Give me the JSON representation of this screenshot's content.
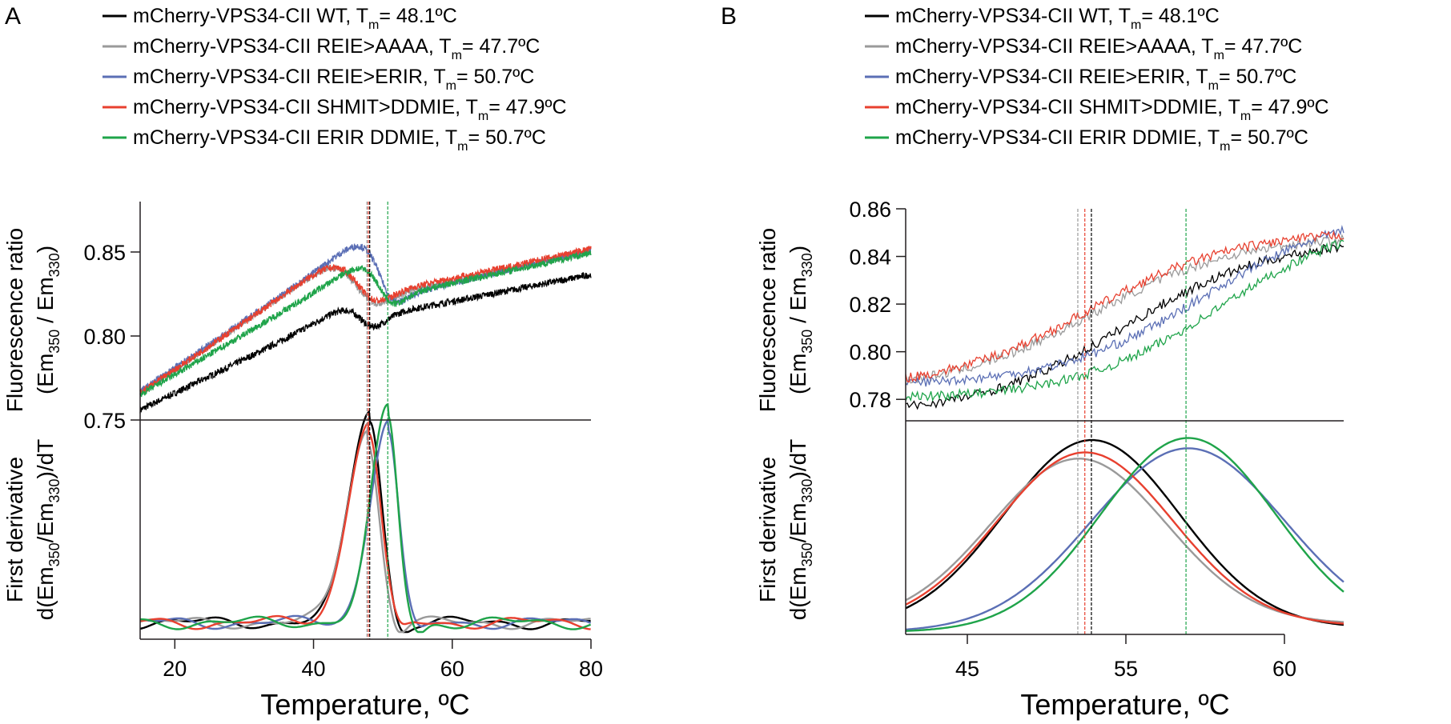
{
  "figure": {
    "panels": [
      "A",
      "B"
    ]
  },
  "legend": {
    "prefix": "mCherry-VPS34-CII",
    "tm_symbol": "T",
    "tm_sub": "m",
    "entries": [
      {
        "name": "WT",
        "tm": "48.1ºC",
        "color": "#000000"
      },
      {
        "name": "REIE>AAAA",
        "tm": "47.7ºC",
        "color": "#9a9a9a"
      },
      {
        "name": "REIE>ERIR",
        "tm": "50.7ºC",
        "color": "#5b6fb5"
      },
      {
        "name": "SHMIT>DDMIE",
        "tm": "47.9ºC",
        "color": "#e8402f"
      },
      {
        "name": "ERIR DDMIE",
        "tm": "50.7ºC",
        "color": "#1fa44a"
      }
    ]
  },
  "labels": {
    "ratio_line1": "Fluorescence ratio",
    "ratio_open": "(Em",
    "ratio_sub1": "350",
    "ratio_mid": " / Em",
    "ratio_sub2": "330",
    "ratio_close": ")",
    "deriv_line1": "First derivative",
    "deriv_open": "d(Em",
    "deriv_sub1": "350",
    "deriv_mid": "/Em",
    "deriv_sub2": "330",
    "deriv_close": ")/dT",
    "xlabel": "Temperature, ºC"
  },
  "chart_data": [
    {
      "panel": "A",
      "type": "line",
      "title": "",
      "xlabel": "Temperature, ºC",
      "xlim": [
        15,
        80
      ],
      "xticks": [
        20,
        40,
        60,
        80
      ],
      "grid": false,
      "legend_position": "top",
      "top_plot": {
        "ylabel": "Fluorescence ratio (Em350 / Em330)",
        "ylim": [
          0.75,
          0.88
        ],
        "yticks": [
          "0.75",
          "0.80",
          "0.85"
        ],
        "series": [
          {
            "name": "mCherry-VPS34-CII WT",
            "color": "#000000",
            "tm": 48.1,
            "low_start": 0.756,
            "low_slope": 0.00025,
            "step": 0.055,
            "width": 1.4,
            "high_slope": 0.0008,
            "x_end_value": 0.866
          },
          {
            "name": "mCherry-VPS34-CII REIE>AAAA",
            "color": "#9a9a9a",
            "tm": 47.7,
            "low_start": 0.766,
            "low_slope": 0.00035,
            "step": 0.055,
            "width": 1.9,
            "high_slope": 0.0009,
            "x_end_value": 0.873
          },
          {
            "name": "mCherry-VPS34-CII REIE>ERIR",
            "color": "#5b6fb5",
            "tm": 50.7,
            "low_start": 0.767,
            "low_slope": 0.00035,
            "step": 0.055,
            "width": 1.4,
            "high_slope": 0.001,
            "x_end_value": 0.878
          },
          {
            "name": "mCherry-VPS34-CII SHMIT>DDMIE",
            "color": "#e8402f",
            "tm": 47.9,
            "low_start": 0.766,
            "low_slope": 0.00035,
            "step": 0.057,
            "width": 1.9,
            "high_slope": 0.0009,
            "x_end_value": 0.876
          },
          {
            "name": "mCherry-VPS34-CII ERIR DDMIE",
            "color": "#1fa44a",
            "tm": 50.7,
            "low_start": 0.765,
            "low_slope": 0.0003,
            "step": 0.058,
            "width": 1.4,
            "high_slope": 0.0009,
            "x_end_value": 0.871
          }
        ]
      },
      "bottom_plot": {
        "ylabel": "First derivative d(Em350/Em330)/dT",
        "yticks": [],
        "series": [
          {
            "name": "mCherry-VPS34-CII WT",
            "color": "#000000",
            "peak_x": 48.1,
            "peak_rel": 0.98,
            "sigma": 2.3
          },
          {
            "name": "mCherry-VPS34-CII REIE>AAAA",
            "color": "#9a9a9a",
            "peak_x": 47.7,
            "peak_rel": 0.88,
            "sigma": 2.3
          },
          {
            "name": "mCherry-VPS34-CII REIE>ERIR",
            "color": "#5b6fb5",
            "peak_x": 50.7,
            "peak_rel": 0.93,
            "sigma": 2.0
          },
          {
            "name": "mCherry-VPS34-CII SHMIT>DDMIE",
            "color": "#e8402f",
            "peak_x": 47.9,
            "peak_rel": 0.92,
            "sigma": 2.3
          },
          {
            "name": "mCherry-VPS34-CII ERIR DDMIE",
            "color": "#1fa44a",
            "peak_x": 50.7,
            "peak_rel": 0.98,
            "sigma": 1.9
          }
        ]
      },
      "tm_markers": [
        {
          "x": 47.7,
          "color": "#9a9a9a"
        },
        {
          "x": 47.9,
          "color": "#e8402f"
        },
        {
          "x": 48.1,
          "color": "#000000"
        },
        {
          "x": 50.7,
          "color": "#1fa44a"
        }
      ]
    },
    {
      "panel": "B",
      "type": "line",
      "title": "",
      "xlabel": "Temperature, ºC",
      "xlim_display": [
        42.8,
        60
      ],
      "xticks": [
        45,
        55,
        60
      ],
      "grid": false,
      "legend_position": "top",
      "top_plot": {
        "ylabel": "Fluorescence ratio (Em350 / Em330)",
        "ylim": [
          0.771,
          0.86
        ],
        "yticks": [
          "0.78",
          "0.80",
          "0.82",
          "0.84",
          "0.86"
        ],
        "series": [
          {
            "name": "mCherry-VPS34-CII WT",
            "color": "#000000",
            "start": 0.777,
            "end": 0.844,
            "mid": 0.5,
            "k": 6
          },
          {
            "name": "mCherry-VPS34-CII REIE>AAAA",
            "color": "#9a9a9a",
            "start": 0.788,
            "end": 0.847,
            "mid": 0.43,
            "k": 6
          },
          {
            "name": "mCherry-VPS34-CII REIE>ERIR",
            "color": "#5b6fb5",
            "start": 0.787,
            "end": 0.851,
            "mid": 0.68,
            "k": 6
          },
          {
            "name": "mCherry-VPS34-CII SHMIT>DDMIE",
            "color": "#e8402f",
            "start": 0.789,
            "end": 0.849,
            "mid": 0.42,
            "k": 6
          },
          {
            "name": "mCherry-VPS34-CII ERIR DDMIE",
            "color": "#1fa44a",
            "start": 0.781,
            "end": 0.846,
            "mid": 0.72,
            "k": 6
          }
        ]
      },
      "bottom_plot": {
        "ylabel": "First derivative d(Em350/Em330)/dT",
        "yticks": [],
        "series": [
          {
            "name": "mCherry-VPS34-CII WT",
            "color": "#000000",
            "peak_rel_x": 0.425,
            "peak_rel": 0.93,
            "sigma": 0.2,
            "floor": 0.02
          },
          {
            "name": "mCherry-VPS34-CII REIE>AAAA",
            "color": "#9a9a9a",
            "peak_rel_x": 0.395,
            "peak_rel": 0.84,
            "sigma": 0.2,
            "floor": 0.04
          },
          {
            "name": "mCherry-VPS34-CII REIE>ERIR",
            "color": "#5b6fb5",
            "peak_rel_x": 0.645,
            "peak_rel": 0.89,
            "sigma": 0.22,
            "floor": 0.0
          },
          {
            "name": "mCherry-VPS34-CII SHMIT>DDMIE",
            "color": "#e8402f",
            "peak_rel_x": 0.41,
            "peak_rel": 0.87,
            "sigma": 0.2,
            "floor": 0.03
          },
          {
            "name": "mCherry-VPS34-CII ERIR DDMIE",
            "color": "#1fa44a",
            "peak_rel_x": 0.645,
            "peak_rel": 0.94,
            "sigma": 0.2,
            "floor": 0.0
          }
        ]
      },
      "tm_markers_rel": [
        {
          "x_rel": 0.393,
          "color": "#9a9a9a"
        },
        {
          "x_rel": 0.409,
          "color": "#e8402f"
        },
        {
          "x_rel": 0.424,
          "color": "#000000"
        },
        {
          "x_rel": 0.64,
          "color": "#1fa44a"
        }
      ]
    }
  ]
}
